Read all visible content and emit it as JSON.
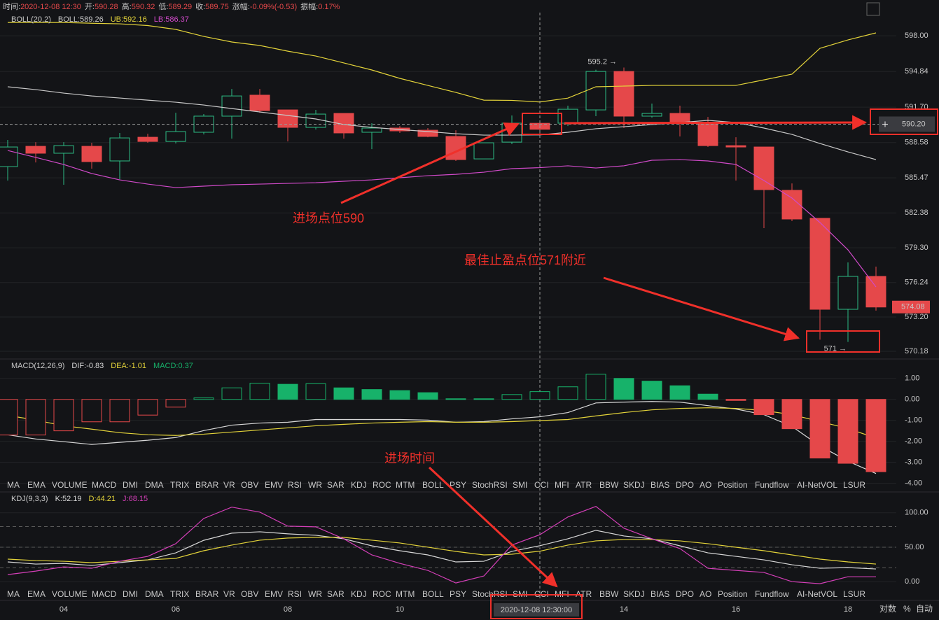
{
  "header": {
    "fields": [
      {
        "label": "时间:",
        "value": "2020-12-08 12:30"
      },
      {
        "label": "开:",
        "value": "590.28"
      },
      {
        "label": "高:",
        "value": "590.32"
      },
      {
        "label": "低:",
        "value": "589.29"
      },
      {
        "label": "收:",
        "value": "589.75"
      },
      {
        "label": "涨幅:",
        "value": "-0.09%(-0.53)"
      },
      {
        "label": "振幅:",
        "value": "0.17%"
      }
    ]
  },
  "chart_data": [
    {
      "type": "candlestick",
      "title": "BOLL(20,2)",
      "categories": [
        null,
        null,
        "04",
        null,
        null,
        null,
        "06",
        null,
        null,
        null,
        "08",
        null,
        null,
        null,
        "10",
        null,
        null,
        null,
        null,
        null,
        null,
        null,
        "14",
        null,
        null,
        null,
        "16",
        null,
        null,
        null,
        "18",
        null
      ],
      "open": [
        586.46,
        588.25,
        587.64,
        588.25,
        586.96,
        589.05,
        588.68,
        589.49,
        590.91,
        592.76,
        591.46,
        589.92,
        591.15,
        589.49,
        589.86,
        589.67,
        589.12,
        587.14,
        588.62,
        590.28,
        590.29,
        591.46,
        594.85,
        590.91,
        591.15,
        590.35,
        588.31,
        588.19,
        584.37,
        581.9,
        573.88,
        576.78
      ],
      "high": [
        588.81,
        588.62,
        588.62,
        588.56,
        589.43,
        589.36,
        591.21,
        591.09,
        593.31,
        593.31,
        591.46,
        591.46,
        591.15,
        590.29,
        590.04,
        589.86,
        589.67,
        588.56,
        590.97,
        590.32,
        591.83,
        595.0,
        595.2,
        592.02,
        591.83,
        590.84,
        589.05,
        588.19,
        584.98,
        581.9,
        578.01,
        577.64
      ],
      "low": [
        585.23,
        586.83,
        584.86,
        586.28,
        585.35,
        588.56,
        588.5,
        589.3,
        588.93,
        591.21,
        588.68,
        589.73,
        588.93,
        588.0,
        589.43,
        589.05,
        586.96,
        587.14,
        588.44,
        589.29,
        590.04,
        590.91,
        589.86,
        590.78,
        589.12,
        588.19,
        585.23,
        581.04,
        581.65,
        571.2,
        571.0,
        573.76
      ],
      "close": [
        588.19,
        587.64,
        588.31,
        586.9,
        588.99,
        588.68,
        589.55,
        590.91,
        592.69,
        591.4,
        589.92,
        591.09,
        589.43,
        589.86,
        589.61,
        589.12,
        587.08,
        588.56,
        590.29,
        589.75,
        591.52,
        594.85,
        590.91,
        591.15,
        590.35,
        588.31,
        588.19,
        584.43,
        581.84,
        573.88,
        576.78,
        574.08
      ],
      "up_color": "#2dbd85",
      "down_color": "#e5484a",
      "series": [
        {
          "name": "BOLL:589.26",
          "color": "#c9c9c9",
          "values": [
            593.5,
            593.25,
            592.94,
            592.69,
            592.51,
            592.32,
            592.14,
            591.89,
            591.58,
            591.28,
            590.97,
            590.66,
            590.17,
            589.92,
            589.73,
            589.55,
            589.36,
            589.24,
            589.24,
            589.26,
            589.49,
            589.8,
            589.98,
            590.17,
            590.35,
            590.54,
            590.35,
            589.86,
            589.3,
            588.5,
            587.76,
            587.08
          ]
        },
        {
          "name": "UB:592.16",
          "color": "#e3d33a",
          "values": [
            599.17,
            599.17,
            599.17,
            599.1,
            599.05,
            598.9,
            598.56,
            597.94,
            597.45,
            597.14,
            596.64,
            596.21,
            595.6,
            594.98,
            594.24,
            593.62,
            593.0,
            592.32,
            592.3,
            592.16,
            592.5,
            593.5,
            593.56,
            593.62,
            593.62,
            593.62,
            593.62,
            594.11,
            594.61,
            596.89,
            597.63,
            598.25
          ]
        },
        {
          "name": "LB:586.37",
          "color": "#d04ac9",
          "values": [
            587.88,
            587.27,
            586.65,
            585.85,
            585.29,
            584.92,
            584.61,
            584.74,
            584.86,
            584.92,
            584.98,
            585.04,
            585.17,
            585.29,
            585.48,
            585.66,
            585.78,
            585.97,
            586.28,
            586.37,
            586.53,
            586.34,
            586.53,
            587.02,
            587.08,
            586.96,
            586.65,
            585.23,
            583.69,
            581.53,
            579.12,
            575.85
          ]
        }
      ],
      "ylim": [
        569.56,
        600.04
      ],
      "yticks": [
        {
          "value": 598,
          "label": "598.00"
        },
        {
          "value": 594.84,
          "label": "594.84"
        },
        {
          "value": 591.7,
          "label": "591.70"
        },
        {
          "value": 588.58,
          "label": "588.58"
        },
        {
          "value": 585.47,
          "label": "585.47"
        },
        {
          "value": 582.38,
          "label": "582.38"
        },
        {
          "value": 579.3,
          "label": "579.30"
        },
        {
          "value": 576.24,
          "label": "576.24"
        },
        {
          "value": 573.2,
          "label": "573.20"
        },
        {
          "value": 570.18,
          "label": "570.18"
        }
      ],
      "grid": true,
      "last_price": {
        "value": 574.08,
        "label": "574.08"
      },
      "crosshair": {
        "x_index": 19,
        "x_label": "2020-12-08 12:30:00",
        "y": {
          "value": 590.2,
          "label": "590.20"
        }
      },
      "annotations": [
        {
          "text": "595.2 →",
          "value": 595.2,
          "at": "high"
        },
        {
          "text": "571 →",
          "value": 571,
          "at": "low"
        }
      ]
    },
    {
      "type": "macd",
      "title": "MACD(12,26,9)",
      "series": [
        {
          "name": "DIF:-0.83",
          "color": "#d8d8d8",
          "values": [
            -1.69,
            -1.89,
            -2.02,
            -2.15,
            -2.05,
            -1.95,
            -1.82,
            -1.49,
            -1.23,
            -1.13,
            -1.09,
            -0.96,
            -0.96,
            -0.96,
            -0.96,
            -0.99,
            -1.09,
            -1.06,
            -0.93,
            -0.83,
            -0.63,
            -0.17,
            -0.13,
            -0.1,
            -0.13,
            -0.3,
            -0.46,
            -0.73,
            -1.29,
            -2.22,
            -2.95,
            -3.54
          ]
        },
        {
          "name": "DEA:-1.01",
          "color": "#e3d33a",
          "values": [
            -0.76,
            -0.99,
            -1.26,
            -1.42,
            -1.59,
            -1.69,
            -1.72,
            -1.66,
            -1.56,
            -1.46,
            -1.36,
            -1.26,
            -1.19,
            -1.13,
            -1.09,
            -1.06,
            -1.09,
            -1.09,
            -1.06,
            -1.01,
            -0.96,
            -0.79,
            -0.63,
            -0.5,
            -0.43,
            -0.4,
            -0.43,
            -0.53,
            -0.73,
            -1.06,
            -1.39,
            -1.85
          ]
        },
        {
          "name": "MACD:0.37",
          "color": "#17b26a",
          "kind": "histogram",
          "down_color": "#e5484a",
          "values": [
            -1.7,
            -1.7,
            -1.5,
            -1.07,
            -1.07,
            -0.75,
            -0.37,
            0.07,
            0.55,
            0.77,
            0.72,
            0.75,
            0.55,
            0.47,
            0.42,
            0.32,
            0.03,
            0.03,
            0.23,
            0.37,
            0.6,
            1.2,
            1.0,
            0.87,
            0.65,
            0.25,
            -0.05,
            -0.73,
            -1.4,
            -2.8,
            -3.05,
            -3.45
          ]
        }
      ],
      "ylim": [
        -4.05,
        1.36
      ],
      "yticks": [
        {
          "value": 1,
          "label": "1.00"
        },
        {
          "value": 0,
          "label": "0.00"
        },
        {
          "value": -1,
          "label": "-1.00"
        },
        {
          "value": -2,
          "label": "-2.00"
        },
        {
          "value": -3,
          "label": "-3.00"
        },
        {
          "value": -4,
          "label": "-4.00"
        }
      ],
      "grid": true
    },
    {
      "type": "line",
      "title": "KDJ(9,3,3)",
      "series": [
        {
          "name": "K:52.19",
          "color": "#d8d8d8",
          "values": [
            28.6,
            25.5,
            26.5,
            23.5,
            27.6,
            31.6,
            41.8,
            60,
            70.4,
            72.4,
            69.4,
            67.3,
            62.2,
            52,
            44.9,
            38.8,
            28.6,
            29.6,
            43.9,
            52.19,
            62.2,
            74.5,
            66.3,
            62.2,
            52,
            41.8,
            36.7,
            31.6,
            24.5,
            19.4,
            20.4,
            18.4
          ]
        },
        {
          "name": "D:44.21",
          "color": "#e3d33a",
          "values": [
            32.7,
            30.6,
            29.6,
            27.6,
            29.6,
            31.6,
            33.7,
            44.9,
            53.1,
            60.2,
            63.3,
            64.3,
            64.3,
            60.2,
            56.1,
            50,
            43.9,
            38.8,
            39.8,
            44.21,
            53.1,
            59.2,
            61.2,
            61.2,
            59.2,
            55.1,
            50,
            44.9,
            38.8,
            32.7,
            28.6,
            25.5
          ]
        },
        {
          "name": "J:68.15",
          "color": "#d43fb8",
          "values": [
            10.2,
            15.3,
            21.4,
            19.4,
            29.6,
            36.7,
            55.1,
            91.8,
            108.2,
            101,
            80.6,
            79.6,
            62.2,
            38.8,
            26.5,
            16.3,
            -2,
            8.2,
            53.1,
            68.15,
            93.9,
            109.2,
            77.6,
            62.2,
            48,
            19.4,
            16.3,
            13.3,
            0,
            -3,
            7.1,
            7.1
          ]
        }
      ],
      "ylim": [
        -11,
        115
      ],
      "yticks": [
        {
          "value": 100,
          "label": "100.00"
        },
        {
          "value": 50,
          "label": "50.00"
        },
        {
          "value": 0,
          "label": "0.00"
        }
      ],
      "guide_lines": [
        80,
        50,
        20
      ],
      "grid": true
    }
  ],
  "toolbar": {
    "tabs": [
      "MA",
      "EMA",
      "VOLUME",
      "MACD",
      "DMI",
      "DMA",
      "TRIX",
      "BRAR",
      "VR",
      "OBV",
      "EMV",
      "RSI",
      "WR",
      "SAR",
      "KDJ",
      "ROC",
      "MTM",
      "BOLL",
      "PSY",
      "StochRSI",
      "SMI",
      "CCI",
      "MFI",
      "ATR",
      "BBW",
      "SKDJ",
      "BIAS",
      "DPO",
      "AO",
      "Position",
      "Fundflow",
      "AI-NetVOL",
      "LSUR"
    ],
    "panels": [
      {
        "active": "MACD",
        "muted": "KDJ"
      },
      {
        "active": "KDJ",
        "muted": "MACD"
      }
    ]
  },
  "scale_options": [
    "对数",
    "%",
    "自动"
  ],
  "notes": {
    "entry_price": "进场点位590",
    "take_profit": "最佳止盈点位571附近",
    "entry_time": "进场时间"
  }
}
